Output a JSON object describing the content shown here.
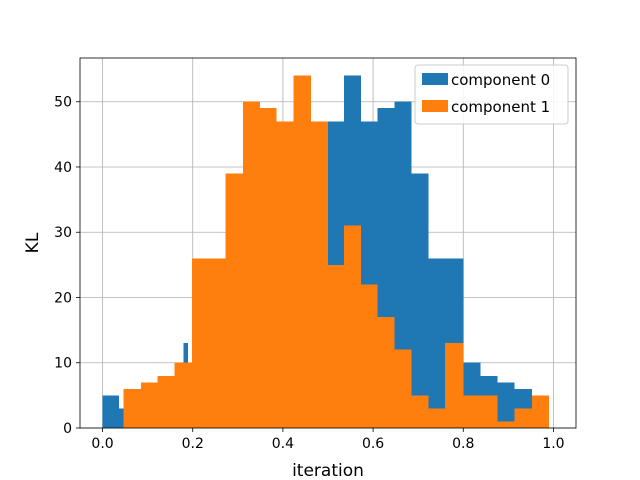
{
  "chart_data": {
    "type": "bar",
    "title": "",
    "xlabel": "iteration",
    "ylabel": "KL",
    "xlim": [
      -0.05,
      1.05
    ],
    "ylim": [
      0,
      56.7
    ],
    "xticks": [
      "0.0",
      "0.2",
      "0.4",
      "0.6",
      "0.8",
      "1.0"
    ],
    "yticks": [
      "0",
      "10",
      "20",
      "30",
      "40",
      "50"
    ],
    "grid": true,
    "legend_position": "top-right",
    "bin_edges": [
      0.0,
      0.0399,
      0.0798,
      0.1197,
      0.1596,
      0.1995,
      0.2394,
      0.2793,
      0.3192,
      0.3591,
      0.399,
      0.4389,
      0.4788,
      0.5187,
      0.5586,
      0.5985,
      0.6384,
      0.6783,
      0.7182,
      0.7581,
      0.798,
      0.8379,
      0.8778,
      0.9177,
      0.9576,
      0.9975
    ],
    "series": [
      {
        "name": "component 0",
        "color": "#1f77b4",
        "bins": [
          {
            "x0": 0.0,
            "x1": 0.037,
            "y": 5
          },
          {
            "x0": 0.037,
            "x1": 0.047,
            "y": 3
          },
          {
            "x0": 0.18,
            "x1": 0.19,
            "y": 13
          },
          {
            "x0": 0.5,
            "x1": 0.535,
            "y": 47
          },
          {
            "x0": 0.535,
            "x1": 0.573,
            "y": 54
          },
          {
            "x0": 0.573,
            "x1": 0.61,
            "y": 47
          },
          {
            "x0": 0.61,
            "x1": 0.647,
            "y": 49
          },
          {
            "x0": 0.647,
            "x1": 0.685,
            "y": 50
          },
          {
            "x0": 0.685,
            "x1": 0.723,
            "y": 39
          },
          {
            "x0": 0.723,
            "x1": 0.8,
            "y": 26
          },
          {
            "x0": 0.8,
            "x1": 0.838,
            "y": 10
          },
          {
            "x0": 0.838,
            "x1": 0.876,
            "y": 8
          },
          {
            "x0": 0.876,
            "x1": 0.914,
            "y": 7
          },
          {
            "x0": 0.914,
            "x1": 0.952,
            "y": 6
          }
        ]
      },
      {
        "name": "component 1",
        "color": "#ff7f0e",
        "bins": [
          {
            "x0": 0.047,
            "x1": 0.085,
            "y": 6
          },
          {
            "x0": 0.085,
            "x1": 0.122,
            "y": 7
          },
          {
            "x0": 0.122,
            "x1": 0.16,
            "y": 8
          },
          {
            "x0": 0.16,
            "x1": 0.198,
            "y": 10
          },
          {
            "x0": 0.198,
            "x1": 0.273,
            "y": 26
          },
          {
            "x0": 0.273,
            "x1": 0.311,
            "y": 39
          },
          {
            "x0": 0.311,
            "x1": 0.349,
            "y": 50
          },
          {
            "x0": 0.349,
            "x1": 0.386,
            "y": 49
          },
          {
            "x0": 0.386,
            "x1": 0.424,
            "y": 47
          },
          {
            "x0": 0.424,
            "x1": 0.462,
            "y": 54
          },
          {
            "x0": 0.462,
            "x1": 0.5,
            "y": 47
          },
          {
            "x0": 0.5,
            "x1": 0.535,
            "y": 25
          },
          {
            "x0": 0.535,
            "x1": 0.573,
            "y": 31
          },
          {
            "x0": 0.573,
            "x1": 0.61,
            "y": 22
          },
          {
            "x0": 0.61,
            "x1": 0.647,
            "y": 17
          },
          {
            "x0": 0.647,
            "x1": 0.685,
            "y": 12
          },
          {
            "x0": 0.685,
            "x1": 0.723,
            "y": 5
          },
          {
            "x0": 0.723,
            "x1": 0.76,
            "y": 3
          },
          {
            "x0": 0.76,
            "x1": 0.8,
            "y": 13
          },
          {
            "x0": 0.8,
            "x1": 0.876,
            "y": 5
          },
          {
            "x0": 0.876,
            "x1": 0.914,
            "y": 1
          },
          {
            "x0": 0.914,
            "x1": 0.952,
            "y": 3
          },
          {
            "x0": 0.952,
            "x1": 0.99,
            "y": 5
          }
        ]
      }
    ]
  }
}
